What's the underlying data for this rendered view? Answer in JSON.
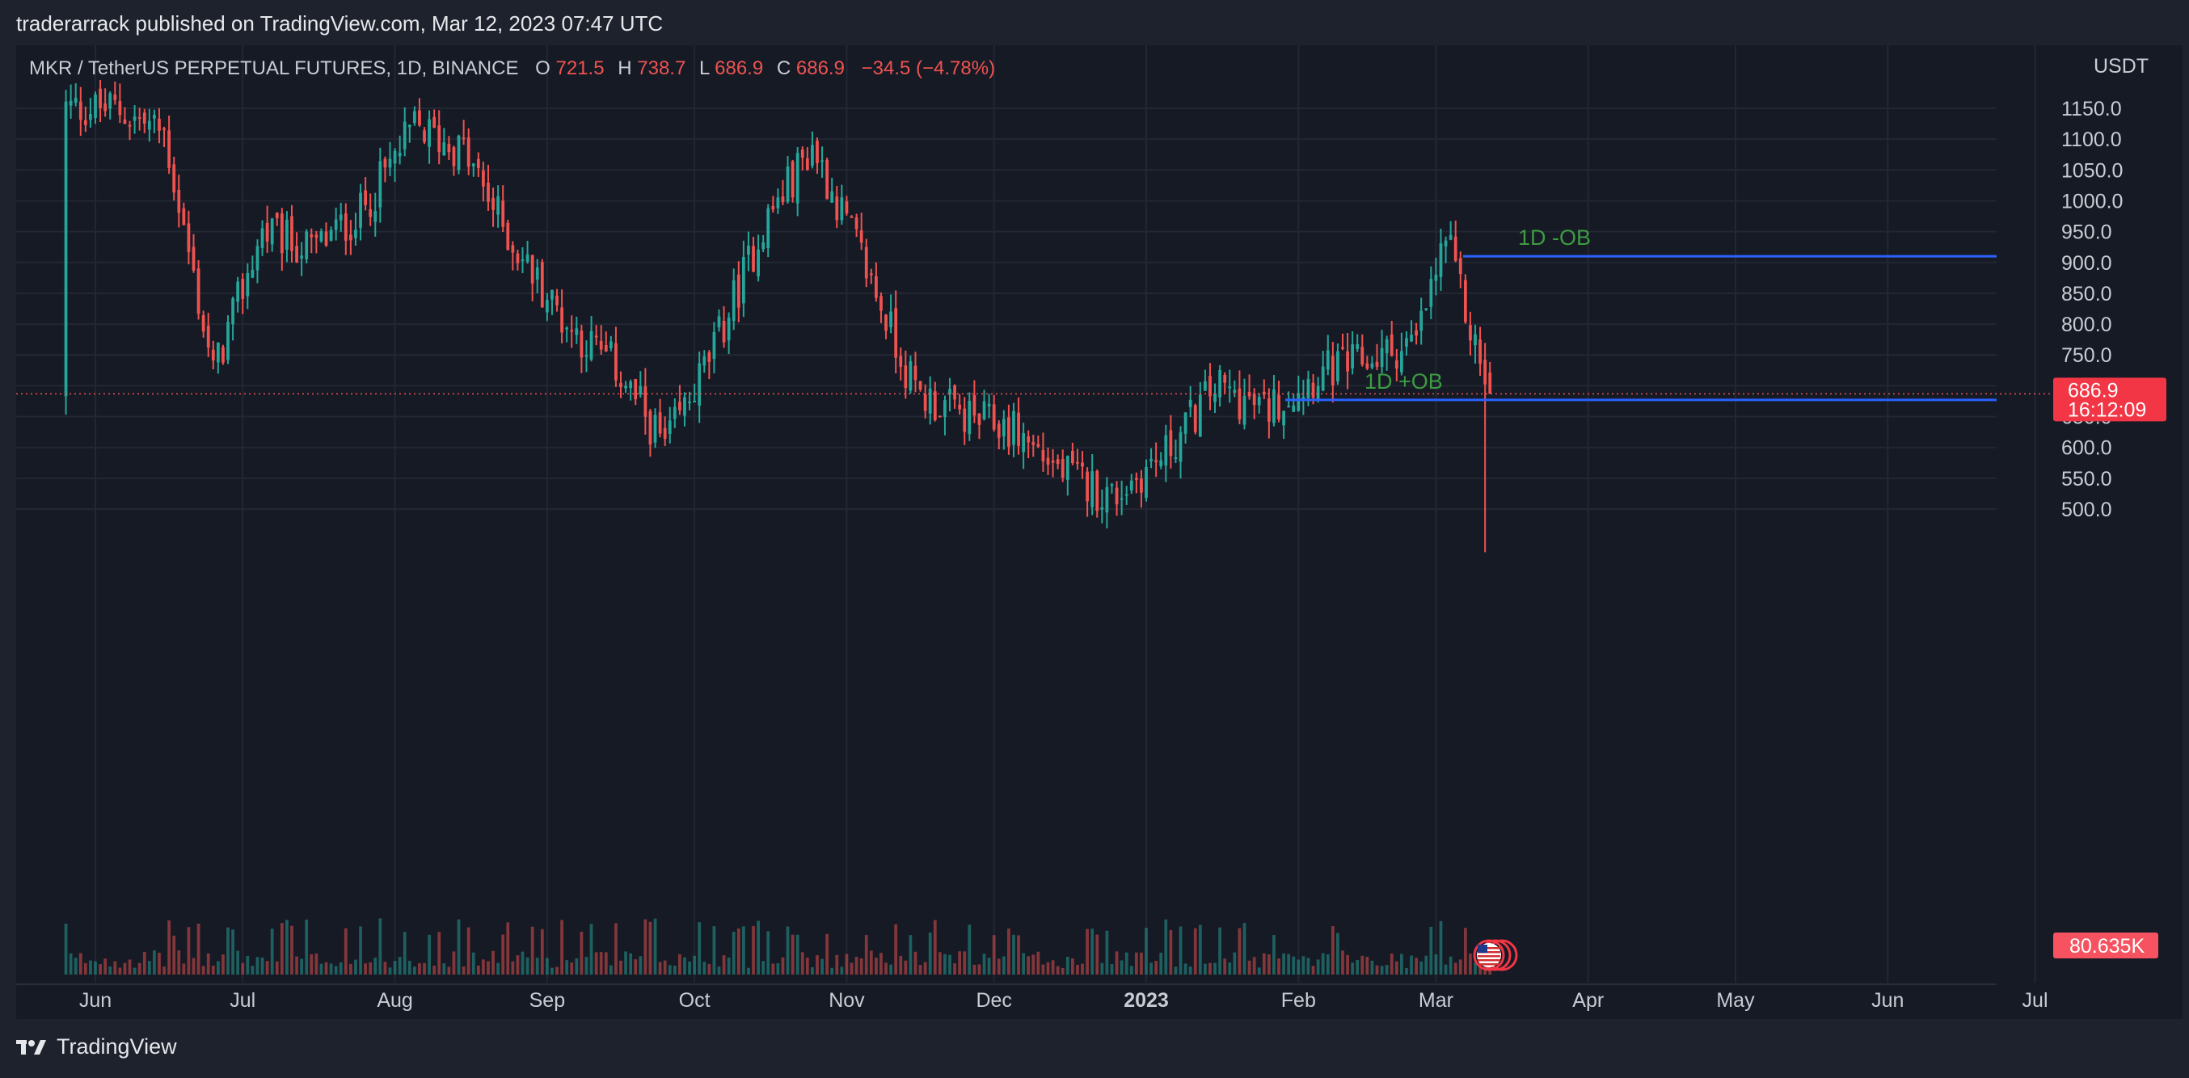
{
  "header": {
    "published": "traderarrack published on TradingView.com, Mar 12, 2023 07:47 UTC"
  },
  "footer": {
    "brand": "TradingView",
    "logo_icon": "tradingview-logo-icon"
  },
  "legend": {
    "symbol": "MKR / TetherUS PERPETUAL FUTURES, 1D, BINANCE",
    "o_label": "O",
    "o_value": "721.5",
    "h_label": "H",
    "h_value": "738.7",
    "l_label": "L",
    "l_value": "686.9",
    "c_label": "C",
    "c_value": "686.9",
    "change": "−34.5 (−4.78%)"
  },
  "colors": {
    "background": "#161a25",
    "up": "#26a69a",
    "down": "#ef5350",
    "level_line": "#2962ff",
    "annotation": "#3d9b42"
  },
  "annotations": [
    {
      "text": "1D -OB",
      "price": 910
    },
    {
      "text": "1D +OB",
      "price": 677
    }
  ],
  "price_tag": {
    "price": "686.9",
    "countdown": "16:12:09"
  },
  "volume_tag": "80.635K",
  "chart_data": {
    "type": "candlestick",
    "y_axis_unit": "USDT",
    "y_ticks": [
      "1150.0",
      "1100.0",
      "1050.0",
      "1000.0",
      "950.0",
      "900.0",
      "850.0",
      "800.0",
      "750.0",
      "700.0",
      "650.0",
      "600.0",
      "550.0",
      "500.0"
    ],
    "x_ticks": [
      "Jun",
      "Jul",
      "Aug",
      "Sep",
      "Oct",
      "Nov",
      "Dec",
      "2023",
      "Feb",
      "Mar",
      "Apr",
      "May",
      "Jun",
      "Jul"
    ],
    "ylim": [
      430,
      1175
    ],
    "grid": true,
    "series": [
      {
        "date": "2022-06-05",
        "close": 1150
      },
      {
        "date": "2022-06-15",
        "close": 1110
      },
      {
        "date": "2022-06-25",
        "close": 720
      },
      {
        "date": "2022-07-05",
        "close": 950
      },
      {
        "date": "2022-07-15",
        "close": 920
      },
      {
        "date": "2022-07-25",
        "close": 980
      },
      {
        "date": "2022-08-05",
        "close": 1120
      },
      {
        "date": "2022-08-15",
        "close": 1080
      },
      {
        "date": "2022-08-25",
        "close": 930
      },
      {
        "date": "2022-09-05",
        "close": 800
      },
      {
        "date": "2022-09-15",
        "close": 730
      },
      {
        "date": "2022-09-25",
        "close": 600
      },
      {
        "date": "2022-10-05",
        "close": 760
      },
      {
        "date": "2022-10-15",
        "close": 960
      },
      {
        "date": "2022-10-25",
        "close": 1090
      },
      {
        "date": "2022-11-05",
        "close": 890
      },
      {
        "date": "2022-11-15",
        "close": 690
      },
      {
        "date": "2022-11-25",
        "close": 650
      },
      {
        "date": "2022-12-05",
        "close": 630
      },
      {
        "date": "2022-12-15",
        "close": 560
      },
      {
        "date": "2022-12-25",
        "close": 520
      },
      {
        "date": "2023-01-05",
        "close": 590
      },
      {
        "date": "2023-01-15",
        "close": 700
      },
      {
        "date": "2023-01-25",
        "close": 660
      },
      {
        "date": "2023-02-05",
        "close": 720
      },
      {
        "date": "2023-02-15",
        "close": 740
      },
      {
        "date": "2023-02-25",
        "close": 770
      },
      {
        "date": "2023-03-03",
        "close": 940
      },
      {
        "date": "2023-03-08",
        "close": 790
      },
      {
        "date": "2023-03-12",
        "close": 686.9
      }
    ]
  }
}
